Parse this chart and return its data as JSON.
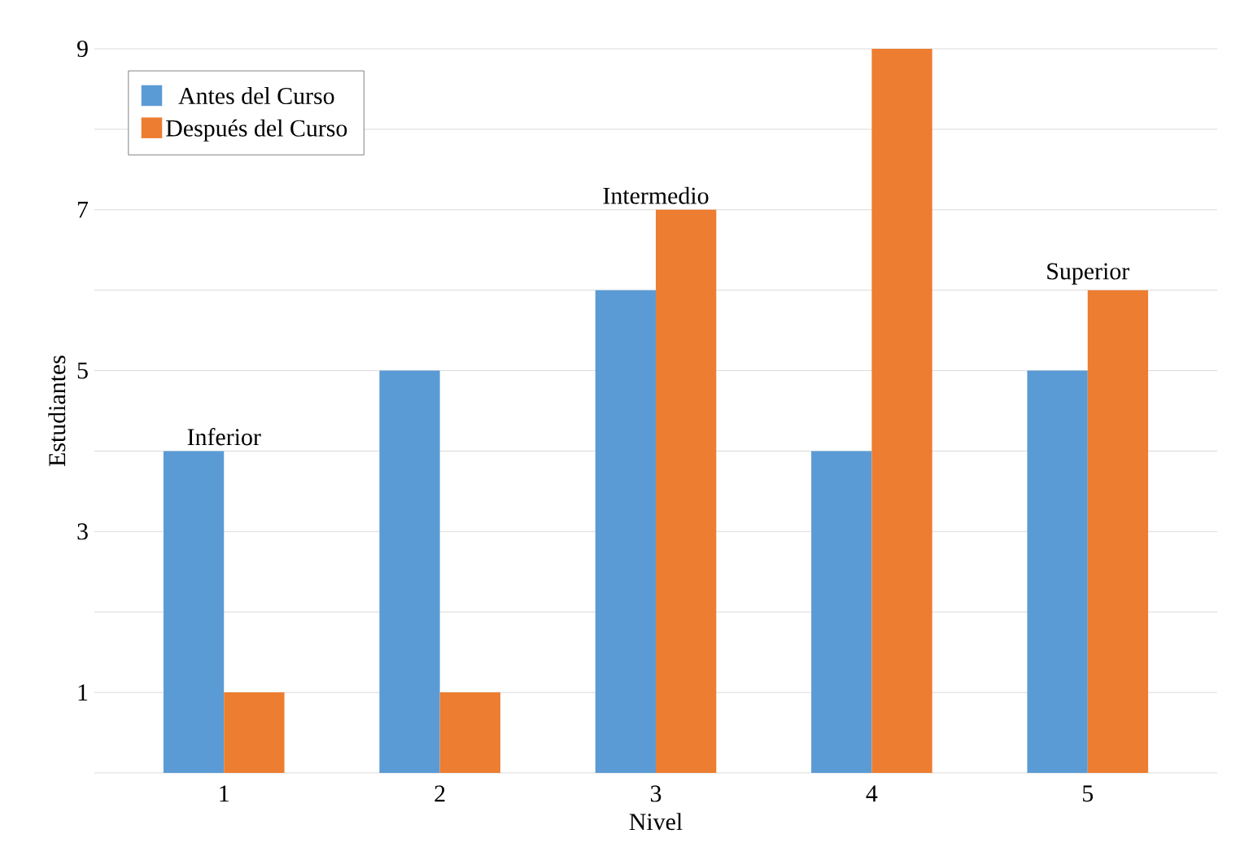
{
  "chart_data": {
    "type": "bar",
    "xlabel": "Nivel",
    "ylabel": "Estudiantes",
    "categories": [
      "1",
      "2",
      "3",
      "4",
      "5"
    ],
    "series": [
      {
        "name": "Antes del Curso",
        "color": "#5b9bd5",
        "values": [
          4,
          5,
          6,
          4,
          5
        ]
      },
      {
        "name": "Después del Curso",
        "color": "#ed7d31",
        "values": [
          1,
          1,
          7,
          9,
          6
        ]
      }
    ],
    "ylim": [
      0,
      9
    ],
    "yticks": [
      {
        "value": 0,
        "label": null
      },
      1,
      {
        "value": 2,
        "label": null
      },
      3,
      {
        "value": 4,
        "label": null
      },
      5,
      {
        "value": 6,
        "label": null
      },
      7,
      {
        "value": 8,
        "label": null
      },
      9
    ],
    "grid": "y",
    "legend": "top left",
    "annotations": [
      "Inferior",
      "Intermedio",
      "Superior"
    ]
  }
}
